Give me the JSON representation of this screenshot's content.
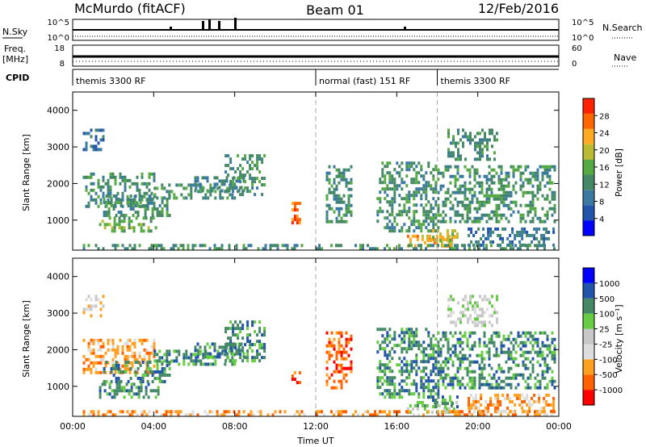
{
  "header": {
    "station": "McMurdo (fitACF)",
    "beam": "Beam 01",
    "date": "12/Feb/2016"
  },
  "strips": {
    "nsky": {
      "label": "N.Sky",
      "ticks_left": [
        "10^5",
        "10^0"
      ],
      "ticks_right": [
        "10^5",
        "10^0"
      ],
      "label_right": "N.Search"
    },
    "freq": {
      "label_top": "Freq.",
      "label_bottom": "[MHz]",
      "ticks_left": [
        "18",
        "8"
      ],
      "ticks_right": [
        "60",
        "0"
      ],
      "label_right": "Nave"
    },
    "cpid": {
      "label": "CPID",
      "segments": [
        {
          "name": "themis 3300 RF",
          "start_hour": 0
        },
        {
          "name": "normal (fast) 151 RF",
          "start_hour": 12
        },
        {
          "name": "themis 3300 RF",
          "start_hour": 18
        }
      ]
    }
  },
  "colors": {
    "power": [
      "#0000ff",
      "#2255aa",
      "#3a7aa0",
      "#448866",
      "#55aa44",
      "#bbbb33",
      "#ffaa22",
      "#ff6600",
      "#ff2200"
    ],
    "velocity": [
      "#ff0000",
      "#ff6000",
      "#ffa020",
      "#dddddd",
      "#c8c8c8",
      "#66cc44",
      "#448866",
      "#2255aa",
      "#0000ff"
    ]
  },
  "chart_data": [
    {
      "type": "heatmap",
      "name": "power",
      "ylabel": "Slant Range [km]",
      "xlim": [
        0,
        24
      ],
      "ylim": [
        180,
        4500
      ],
      "yticks": [
        1000,
        2000,
        3000,
        4000
      ],
      "xticks": [
        "00:00",
        "04:00",
        "08:00",
        "12:00",
        "16:00",
        "20:00",
        "00:00"
      ],
      "colorbar": {
        "label": "Power [dB]",
        "ticks": [
          "4",
          "8",
          "12",
          "16",
          "20",
          "24",
          "28"
        ],
        "range": [
          0,
          30
        ]
      },
      "regions": [
        {
          "t": [
            0.5,
            11.5
          ],
          "r": [
            180,
            350
          ],
          "v": 10
        },
        {
          "t": [
            0.5,
            4.0
          ],
          "r": [
            1400,
            2300
          ],
          "v": 12
        },
        {
          "t": [
            1.3,
            4.2
          ],
          "r": [
            700,
            1100
          ],
          "v": 14
        },
        {
          "t": [
            1.5,
            4.8
          ],
          "r": [
            1100,
            1700
          ],
          "v": 12
        },
        {
          "t": [
            4.0,
            8.0
          ],
          "r": [
            1600,
            2000
          ],
          "v": 13
        },
        {
          "t": [
            6.0,
            8.5
          ],
          "r": [
            1800,
            2200
          ],
          "v": 12
        },
        {
          "t": [
            7.5,
            9.5
          ],
          "r": [
            1700,
            2800
          ],
          "v": 11
        },
        {
          "t": [
            10.8,
            11.2
          ],
          "r": [
            900,
            1500
          ],
          "v": 26
        },
        {
          "t": [
            0.5,
            1.5
          ],
          "r": [
            2900,
            3500
          ],
          "v": 8
        },
        {
          "t": [
            12.5,
            13.8
          ],
          "r": [
            1000,
            2500
          ],
          "v": 13
        },
        {
          "t": [
            15.0,
            18.0
          ],
          "r": [
            700,
            2600
          ],
          "v": 11
        },
        {
          "t": [
            16.5,
            19.0
          ],
          "r": [
            300,
            600
          ],
          "v": 24
        },
        {
          "t": [
            17.5,
            19.0
          ],
          "r": [
            450,
            750
          ],
          "v": 18
        },
        {
          "t": [
            18.0,
            23.8
          ],
          "r": [
            1000,
            2500
          ],
          "v": 12
        },
        {
          "t": [
            18.5,
            21.0
          ],
          "r": [
            2700,
            3500
          ],
          "v": 11
        },
        {
          "t": [
            19.5,
            23.8
          ],
          "r": [
            300,
            800
          ],
          "v": 9
        },
        {
          "t": [
            12.0,
            23.8
          ],
          "r": [
            180,
            350
          ],
          "v": 10
        }
      ]
    },
    {
      "type": "heatmap",
      "name": "velocity",
      "ylabel": "Slant Range [km]",
      "xlabel": "Time UT",
      "xlim": [
        0,
        24
      ],
      "ylim": [
        180,
        4500
      ],
      "yticks": [
        1000,
        2000,
        3000,
        4000
      ],
      "xticks": [
        "00:00",
        "04:00",
        "08:00",
        "12:00",
        "16:00",
        "20:00",
        "00:00"
      ],
      "colorbar": {
        "label": "Velocity [m s⁻¹]",
        "ticks": [
          "-1000",
          "-500",
          "-100",
          "-25",
          "25",
          "100",
          "500",
          "1000"
        ]
      },
      "regions": [
        {
          "t": [
            0.5,
            11.5
          ],
          "r": [
            180,
            350
          ],
          "v": 2
        },
        {
          "t": [
            0.5,
            4.0
          ],
          "r": [
            1400,
            2300
          ],
          "v": 2
        },
        {
          "t": [
            1.3,
            4.2
          ],
          "r": [
            700,
            1100
          ],
          "v": 6
        },
        {
          "t": [
            1.5,
            4.8
          ],
          "r": [
            1100,
            1700
          ],
          "v": 6
        },
        {
          "t": [
            4.0,
            8.0
          ],
          "r": [
            1600,
            2000
          ],
          "v": 6
        },
        {
          "t": [
            6.0,
            8.5
          ],
          "r": [
            1800,
            2200
          ],
          "v": 6
        },
        {
          "t": [
            7.5,
            9.5
          ],
          "r": [
            1700,
            2800
          ],
          "v": 6
        },
        {
          "t": [
            10.8,
            11.2
          ],
          "r": [
            900,
            1500
          ],
          "v": 1
        },
        {
          "t": [
            0.5,
            1.5
          ],
          "r": [
            2900,
            3500
          ],
          "v": 3
        },
        {
          "t": [
            12.5,
            13.8
          ],
          "r": [
            1000,
            2500
          ],
          "v": 1
        },
        {
          "t": [
            15.0,
            18.0
          ],
          "r": [
            700,
            2600
          ],
          "v": 6
        },
        {
          "t": [
            16.5,
            19.0
          ],
          "r": [
            300,
            600
          ],
          "v": 5
        },
        {
          "t": [
            17.5,
            19.0
          ],
          "r": [
            450,
            750
          ],
          "v": 6
        },
        {
          "t": [
            18.0,
            23.8
          ],
          "r": [
            1000,
            2500
          ],
          "v": 6
        },
        {
          "t": [
            18.5,
            21.0
          ],
          "r": [
            2700,
            3500
          ],
          "v": 4
        },
        {
          "t": [
            19.5,
            23.8
          ],
          "r": [
            300,
            800
          ],
          "v": 2
        },
        {
          "t": [
            12.0,
            23.8
          ],
          "r": [
            180,
            350
          ],
          "v": 2
        }
      ]
    }
  ]
}
